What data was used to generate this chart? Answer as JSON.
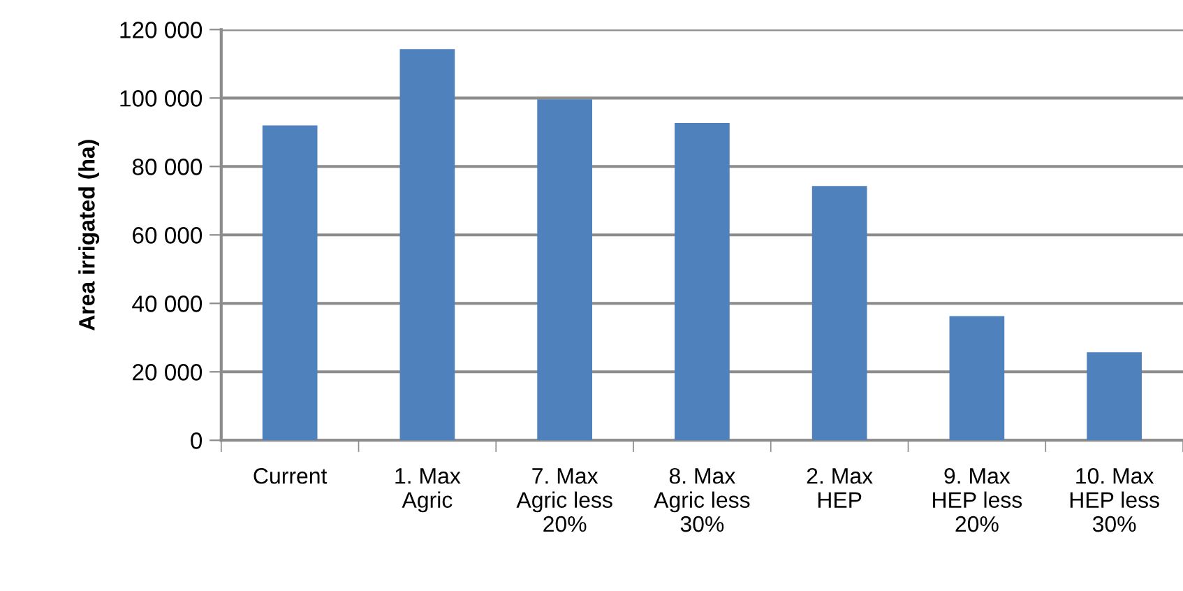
{
  "chart_data": {
    "type": "bar",
    "ylabel": "Area irrigated (ha)",
    "categories": [
      "Current",
      "1. Max\nAgric",
      "7. Max\nAgric less\n20%",
      "8. Max\nAgric less\n30%",
      "2. Max\nHEP",
      "9. Max\nHEP less\n20%",
      "10. Max\nHEP less\n30%"
    ],
    "values": [
      92000,
      114300,
      99600,
      92700,
      74300,
      36300,
      25700
    ],
    "color": "#4f81bd",
    "ylim": [
      0,
      120000
    ],
    "yticks": [
      0,
      {
        "value": 20000,
        "label": "20 000"
      },
      {
        "value": 40000,
        "label": "40 000"
      },
      {
        "value": 60000,
        "label": "60 000"
      },
      {
        "value": 80000,
        "label": "80 000"
      },
      {
        "value": 100000,
        "label": "100 000"
      },
      {
        "value": 120000,
        "label": "120 000"
      }
    ],
    "grid": "y"
  }
}
